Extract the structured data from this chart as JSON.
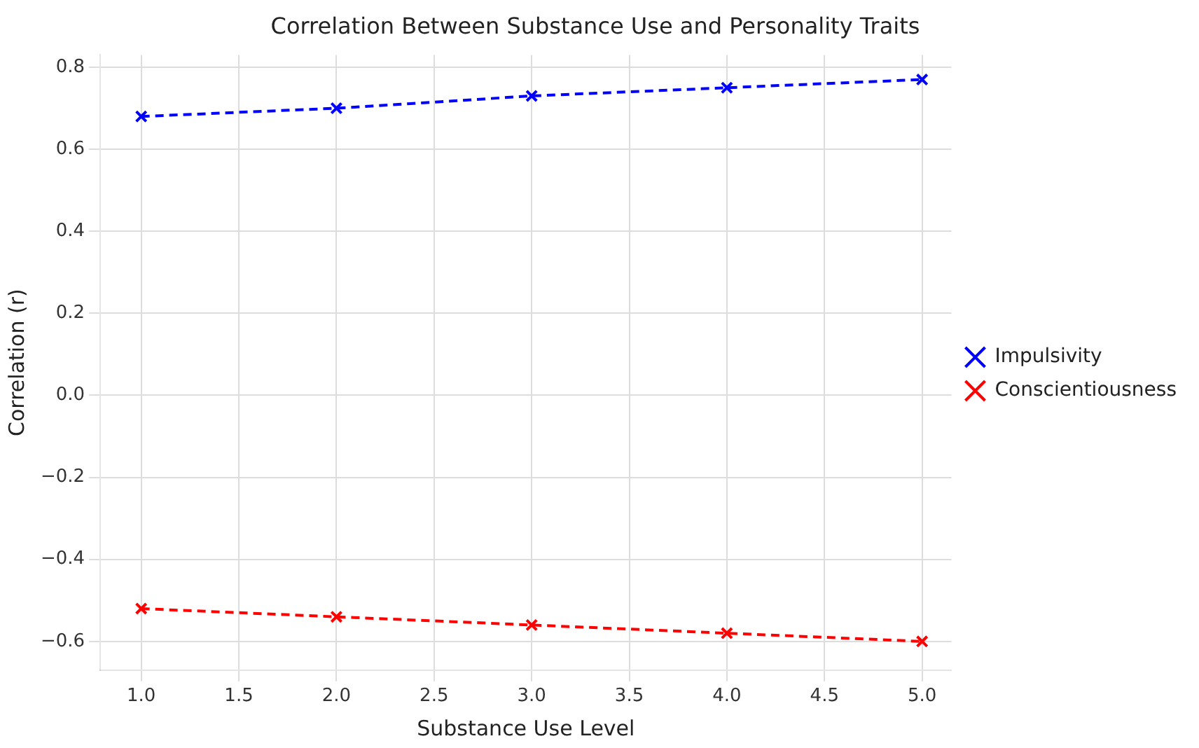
{
  "chart_data": {
    "type": "line",
    "title": "Correlation Between Substance Use and Personality Traits",
    "xlabel": "Substance Use Level",
    "ylabel": "Correlation (r)",
    "x": [
      1,
      2,
      3,
      4,
      5
    ],
    "series": [
      {
        "name": "Impulsivity",
        "color": "#0000ff",
        "values": [
          0.68,
          0.7,
          0.73,
          0.75,
          0.77
        ]
      },
      {
        "name": "Conscientiousness",
        "color": "#ff0000",
        "values": [
          -0.52,
          -0.54,
          -0.56,
          -0.58,
          -0.6
        ]
      }
    ],
    "xlim": [
      0.79,
      5.15
    ],
    "xticks": [
      {
        "value": 1,
        "label": "1.0"
      },
      {
        "value": 1.5,
        "label": "1.5"
      },
      {
        "value": 2,
        "label": "2.0"
      },
      {
        "value": 2.5,
        "label": "2.5"
      },
      {
        "value": 3,
        "label": "3.0"
      },
      {
        "value": 3.5,
        "label": "3.5"
      },
      {
        "value": 4,
        "label": "4.0"
      },
      {
        "value": 4.5,
        "label": "4.5"
      },
      {
        "value": 5,
        "label": "5.0"
      }
    ],
    "ylim": [
      -0.67,
      0.83
    ],
    "yticks": [
      {
        "value": -0.6,
        "label": "−0.6"
      },
      {
        "value": -0.4,
        "label": "−0.4"
      },
      {
        "value": -0.2,
        "label": "−0.2"
      },
      {
        "value": 0,
        "label": "0.0"
      },
      {
        "value": 0.2,
        "label": "0.2"
      },
      {
        "value": 0.4,
        "label": "0.4"
      },
      {
        "value": 0.6,
        "label": "0.6"
      },
      {
        "value": 0.8,
        "label": "0.8"
      }
    ],
    "grid": true,
    "legend": "right",
    "marker": "cross",
    "line_style": "dashed"
  }
}
